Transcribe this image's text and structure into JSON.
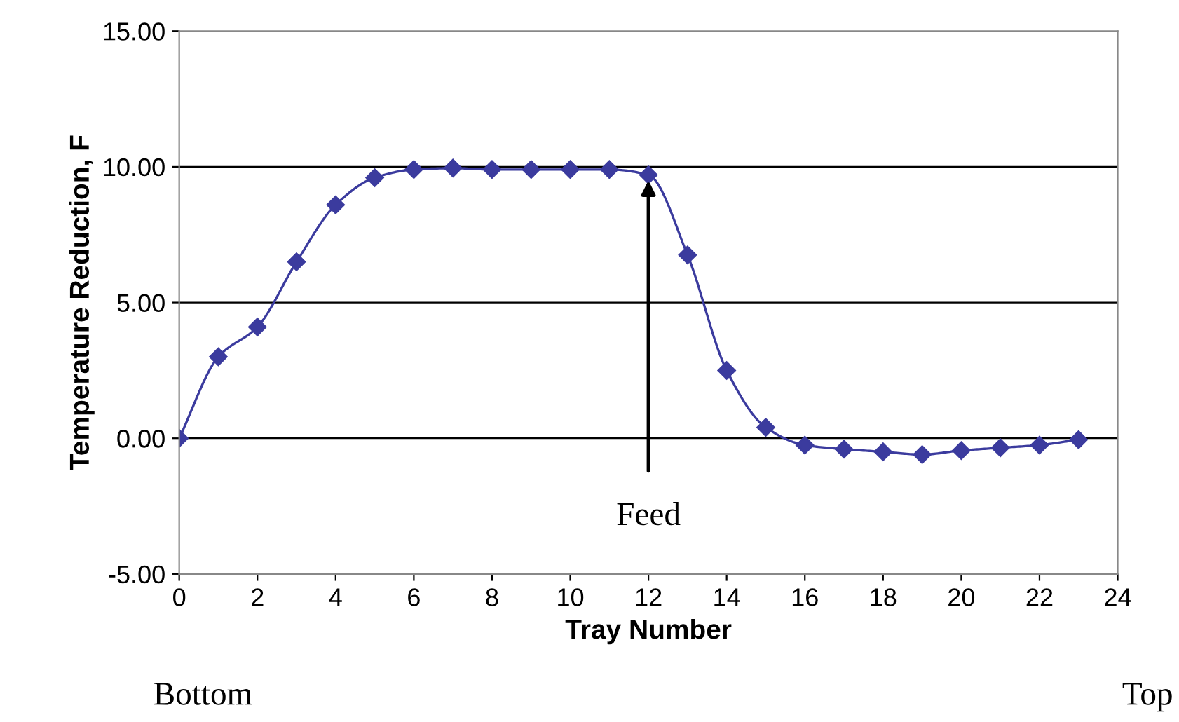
{
  "chart_data": {
    "type": "line",
    "xlabel": "Tray Number",
    "ylabel": "Temperature Reduction, F",
    "x": [
      0,
      1,
      2,
      3,
      4,
      5,
      6,
      7,
      8,
      9,
      10,
      11,
      12,
      13,
      14,
      15,
      16,
      17,
      18,
      19,
      20,
      21,
      22,
      23
    ],
    "series": [
      {
        "color": "#3b3b9e",
        "values": [
          0,
          3.0,
          4.1,
          6.5,
          8.6,
          9.6,
          9.9,
          9.95,
          9.9,
          9.9,
          9.9,
          9.9,
          9.7,
          6.75,
          2.5,
          0.4,
          -0.25,
          -0.4,
          -0.5,
          -0.6,
          -0.45,
          -0.35,
          -0.25,
          -0.05
        ]
      }
    ],
    "xlim": [
      0,
      24
    ],
    "xticks": [
      0,
      2,
      4,
      6,
      8,
      10,
      12,
      14,
      16,
      18,
      20,
      22,
      24
    ],
    "ylim": [
      -5,
      15
    ],
    "yticks": [
      {
        "value": -5,
        "label": "-5.00"
      },
      {
        "value": 0,
        "label": "0.00"
      },
      {
        "value": 5,
        "label": "5.00"
      },
      {
        "value": 10,
        "label": "10.00"
      },
      {
        "value": 15,
        "label": "15.00"
      }
    ],
    "grid": "y",
    "marker": "diamond",
    "line_style": "solid",
    "legend": false,
    "annotations": [
      {
        "text": "Feed",
        "x": 12,
        "y": 9.7
      },
      "Bottom",
      "Top"
    ]
  }
}
